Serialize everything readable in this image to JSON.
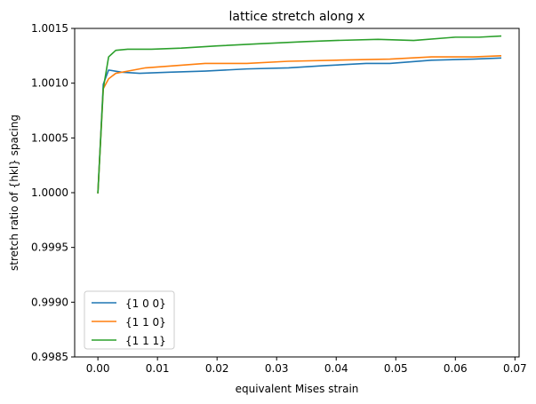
{
  "chart_data": {
    "type": "line",
    "title": "lattice stretch along x",
    "xlabel": "equivalent Mises strain",
    "ylabel": "stretch ratio of {hkl} spacing",
    "xlim": [
      -0.0039,
      0.0707
    ],
    "ylim": [
      0.9985,
      1.0015
    ],
    "xticks": [
      0.0,
      0.01,
      0.02,
      0.03,
      0.04,
      0.05,
      0.06,
      0.07
    ],
    "xtick_labels": [
      "0.00",
      "0.01",
      "0.02",
      "0.03",
      "0.04",
      "0.05",
      "0.06",
      "0.07"
    ],
    "yticks": [
      0.9985,
      0.999,
      0.9995,
      1.0,
      1.0005,
      1.001,
      1.0015
    ],
    "ytick_labels": [
      "0.9985",
      "0.9990",
      "0.9995",
      "1.0000",
      "1.0005",
      "1.0010",
      "1.0015"
    ],
    "grid": false,
    "legend_position": "lower left",
    "series": [
      {
        "name": "{1 0 0}",
        "color": "#1f77b4",
        "x": [
          0.0,
          0.0009,
          0.0018,
          0.004,
          0.007,
          0.012,
          0.018,
          0.025,
          0.032,
          0.038,
          0.045,
          0.049,
          0.056,
          0.063,
          0.0676
        ],
        "y": [
          1.0,
          1.00099,
          1.00112,
          1.0011,
          1.00109,
          1.0011,
          1.00111,
          1.00113,
          1.00114,
          1.00116,
          1.00118,
          1.00118,
          1.00121,
          1.00122,
          1.00123
        ]
      },
      {
        "name": "{1 1 0}",
        "color": "#ff7f0e",
        "x": [
          0.0,
          0.0009,
          0.0018,
          0.003,
          0.005,
          0.008,
          0.013,
          0.018,
          0.025,
          0.032,
          0.04,
          0.049,
          0.056,
          0.063,
          0.0676
        ],
        "y": [
          1.0,
          1.00095,
          1.00104,
          1.00109,
          1.00111,
          1.00114,
          1.00116,
          1.00118,
          1.00118,
          1.0012,
          1.00121,
          1.00122,
          1.00124,
          1.00124,
          1.00125
        ]
      },
      {
        "name": "{1 1 1}",
        "color": "#2ca02c",
        "x": [
          0.0,
          0.0009,
          0.0018,
          0.003,
          0.005,
          0.009,
          0.014,
          0.02,
          0.027,
          0.035,
          0.04,
          0.047,
          0.053,
          0.06,
          0.064,
          0.0676
        ],
        "y": [
          1.0,
          1.00095,
          1.00124,
          1.0013,
          1.00131,
          1.00131,
          1.00132,
          1.00134,
          1.00136,
          1.00138,
          1.00139,
          1.0014,
          1.00139,
          1.00142,
          1.00142,
          1.00143
        ]
      }
    ]
  }
}
